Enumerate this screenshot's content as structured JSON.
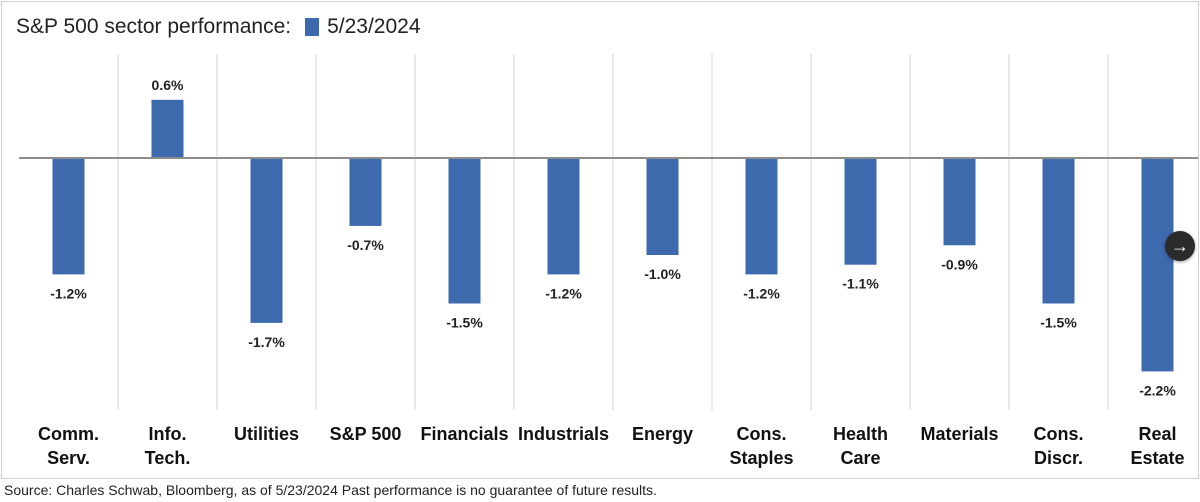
{
  "chart_data": {
    "type": "bar",
    "title": "S&P 500 sector performance:",
    "legend": [
      {
        "name": "5/23/2024",
        "color": "#3d69ad"
      }
    ],
    "categories": [
      [
        "Comm.",
        "Serv."
      ],
      [
        "Info.",
        "Tech."
      ],
      [
        "Utilities"
      ],
      [
        "S&P 500"
      ],
      [
        "Financials"
      ],
      [
        "Industrials"
      ],
      [
        "Energy"
      ],
      [
        "Cons.",
        "Staples"
      ],
      [
        "Health",
        "Care"
      ],
      [
        "Materials"
      ],
      [
        "Cons.",
        "Discr."
      ],
      [
        "Real",
        "Estate"
      ]
    ],
    "series": [
      {
        "name": "5/23/2024",
        "values": [
          -1.2,
          0.6,
          -1.7,
          -0.7,
          -1.5,
          -1.2,
          -1.0,
          -1.2,
          -1.1,
          -0.9,
          -1.5,
          -2.2
        ]
      }
    ],
    "data_labels": [
      "-1.2%",
      "0.6%",
      "-1.7%",
      "-0.7%",
      "-1.5%",
      "-1.2%",
      "-1.0%",
      "-1.2%",
      "-1.1%",
      "-0.9%",
      "-1.5%",
      "-2.2%"
    ],
    "ylim": [
      -2.55,
      1.0
    ],
    "grid": "vertical category separators",
    "legend_position": "top"
  },
  "source_note": "Source: Charles Schwab, Bloomberg, as of 5/23/2024 Past performance is no guarantee of future results.",
  "nav": {
    "next_icon": "→"
  },
  "colors": {
    "bar": "#3d69ad",
    "zero_line": "#8c8c8c",
    "separator": "#d6d6d6"
  }
}
